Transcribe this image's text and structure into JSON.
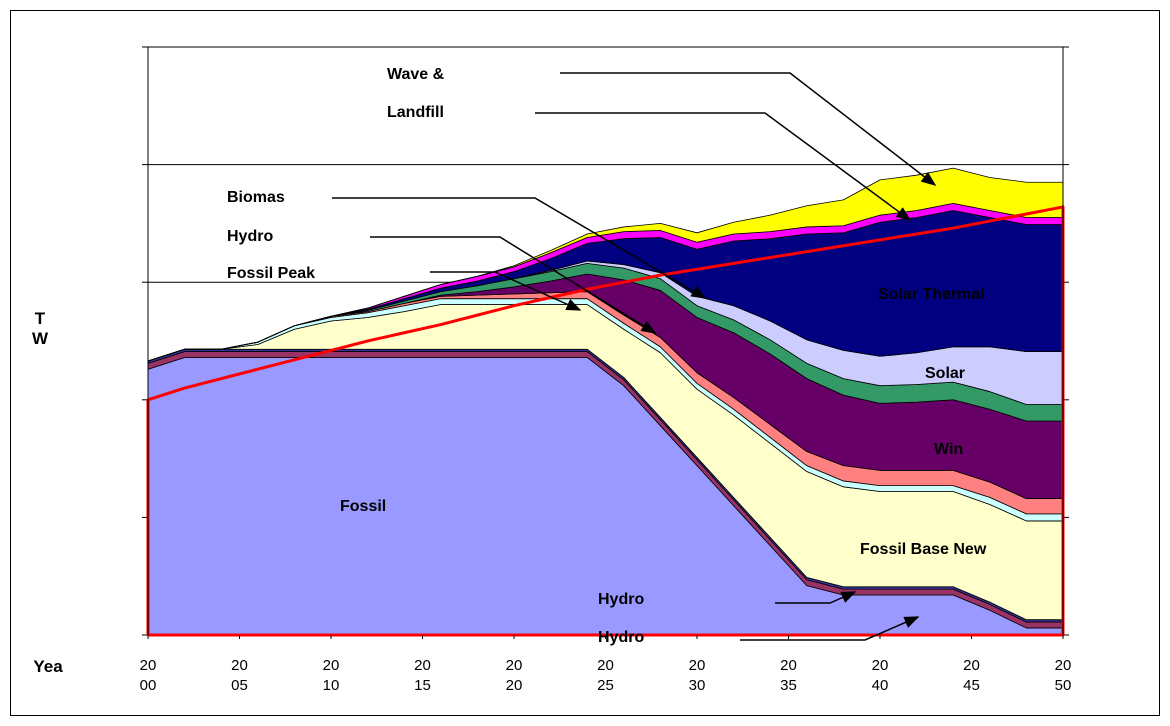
{
  "chart_data": {
    "type": "stacked-area",
    "x_label": "Yea",
    "y_label": "T\nW",
    "x": [
      2000,
      2002,
      2004,
      2006,
      2008,
      2010,
      2012,
      2014,
      2016,
      2018,
      2020,
      2022,
      2024,
      2026,
      2028,
      2030,
      2032,
      2034,
      2036,
      2038,
      2040,
      2042,
      2044,
      2046,
      2048,
      2050
    ],
    "xlim": [
      2000,
      2050
    ],
    "xticks": [
      {
        "value": 2000,
        "label": "20\n00"
      },
      {
        "value": 2005,
        "label": "20\n05"
      },
      {
        "value": 2010,
        "label": "20\n10"
      },
      {
        "value": 2015,
        "label": "20\n15"
      },
      {
        "value": 2020,
        "label": "20\n20"
      },
      {
        "value": 2025,
        "label": "20\n25"
      },
      {
        "value": 2030,
        "label": "20\n30"
      },
      {
        "value": 2035,
        "label": "20\n35"
      },
      {
        "value": 2040,
        "label": "20\n40"
      },
      {
        "value": 2045,
        "label": "20\n45"
      },
      {
        "value": 2050,
        "label": "20\n50"
      }
    ],
    "ylim": [
      0,
      5
    ],
    "yticks": [
      0,
      1,
      2,
      3,
      4,
      5
    ],
    "grid": true,
    "series": [
      {
        "name": "Fossil",
        "color": "#9999ff",
        "values": [
          2.26,
          2.36,
          2.36,
          2.36,
          2.36,
          2.36,
          2.36,
          2.36,
          2.36,
          2.36,
          2.36,
          2.36,
          2.36,
          2.12,
          1.78,
          1.44,
          1.1,
          0.76,
          0.42,
          0.34,
          0.34,
          0.34,
          0.34,
          0.21,
          0.06,
          0.06
        ]
      },
      {
        "name": "Hydro",
        "color": "#993366",
        "values": [
          0.05,
          0.05,
          0.05,
          0.05,
          0.05,
          0.05,
          0.05,
          0.05,
          0.05,
          0.05,
          0.05,
          0.05,
          0.05,
          0.05,
          0.05,
          0.05,
          0.05,
          0.05,
          0.05,
          0.05,
          0.05,
          0.05,
          0.05,
          0.05,
          0.05,
          0.05
        ]
      },
      {
        "name": "Hydro",
        "color": "#333399",
        "values": [
          0.02,
          0.02,
          0.02,
          0.02,
          0.02,
          0.02,
          0.02,
          0.02,
          0.02,
          0.02,
          0.02,
          0.02,
          0.02,
          0.02,
          0.02,
          0.02,
          0.02,
          0.02,
          0.02,
          0.02,
          0.02,
          0.02,
          0.02,
          0.02,
          0.02,
          0.02
        ]
      },
      {
        "name": "Fossil Base New",
        "color": "#ffffcc",
        "values": [
          0,
          0,
          0,
          0.04,
          0.17,
          0.24,
          0.27,
          0.32,
          0.38,
          0.38,
          0.38,
          0.38,
          0.38,
          0.41,
          0.55,
          0.58,
          0.7,
          0.8,
          0.9,
          0.85,
          0.81,
          0.81,
          0.81,
          0.83,
          0.84,
          0.84
        ]
      },
      {
        "name": "Fossil Peak",
        "color": "#ccffff",
        "values": [
          0,
          0,
          0,
          0.02,
          0.03,
          0.03,
          0.04,
          0.05,
          0.05,
          0.05,
          0.05,
          0.05,
          0.05,
          0.05,
          0.05,
          0.05,
          0.05,
          0.05,
          0.05,
          0.05,
          0.05,
          0.05,
          0.05,
          0.06,
          0.06,
          0.06
        ]
      },
      {
        "name": "Hydro",
        "color": "#ff8080",
        "values": [
          0,
          0,
          0,
          0,
          0,
          0.01,
          0.01,
          0.02,
          0.02,
          0.03,
          0.04,
          0.05,
          0.06,
          0.07,
          0.08,
          0.09,
          0.1,
          0.11,
          0.12,
          0.13,
          0.13,
          0.13,
          0.13,
          0.13,
          0.13,
          0.13
        ]
      },
      {
        "name": "Win",
        "color": "#660066",
        "values": [
          0,
          0,
          0,
          0,
          0,
          0,
          0,
          0,
          0.01,
          0.03,
          0.06,
          0.1,
          0.15,
          0.3,
          0.4,
          0.47,
          0.55,
          0.6,
          0.62,
          0.6,
          0.57,
          0.58,
          0.6,
          0.62,
          0.66,
          0.66
        ]
      },
      {
        "name": "Biomas",
        "color": "#339966",
        "values": [
          0,
          0,
          0,
          0,
          0,
          0,
          0.01,
          0.02,
          0.03,
          0.05,
          0.07,
          0.08,
          0.09,
          0.1,
          0.1,
          0.1,
          0.11,
          0.12,
          0.13,
          0.14,
          0.15,
          0.15,
          0.15,
          0.15,
          0.14,
          0.14
        ]
      },
      {
        "name": "Solar",
        "color": "#ccccff",
        "values": [
          0,
          0,
          0,
          0,
          0,
          0,
          0,
          0,
          0,
          0,
          0,
          0.01,
          0.02,
          0.03,
          0.05,
          0.08,
          0.12,
          0.16,
          0.2,
          0.24,
          0.25,
          0.27,
          0.3,
          0.38,
          0.45,
          0.45
        ]
      },
      {
        "name": "Solar Thermal",
        "color": "#000080",
        "values": [
          0,
          0,
          0,
          0,
          0,
          0,
          0.01,
          0.02,
          0.03,
          0.04,
          0.06,
          0.1,
          0.15,
          0.22,
          0.3,
          0.4,
          0.55,
          0.7,
          0.9,
          1.0,
          1.14,
          1.15,
          1.16,
          1.1,
          1.08,
          1.08
        ]
      },
      {
        "name": "Landfill",
        "color": "#ff00ff",
        "values": [
          0,
          0,
          0,
          0,
          0,
          0,
          0.01,
          0.02,
          0.03,
          0.04,
          0.04,
          0.05,
          0.05,
          0.06,
          0.06,
          0.06,
          0.06,
          0.06,
          0.06,
          0.06,
          0.06,
          0.06,
          0.06,
          0.06,
          0.06,
          0.06
        ]
      },
      {
        "name": "Wave &",
        "color": "#ffff00",
        "values": [
          0,
          0,
          0,
          0,
          0,
          0,
          0,
          0,
          0,
          0,
          0.01,
          0.02,
          0.03,
          0.04,
          0.06,
          0.08,
          0.1,
          0.14,
          0.18,
          0.22,
          0.3,
          0.3,
          0.3,
          0.28,
          0.3,
          0.3
        ]
      }
    ],
    "line": {
      "color": "#ff0000",
      "values": [
        2.0,
        2.1,
        2.18,
        2.26,
        2.34,
        2.42,
        2.5,
        2.57,
        2.64,
        2.72,
        2.8,
        2.87,
        2.94,
        3.0,
        3.06,
        3.11,
        3.16,
        3.21,
        3.26,
        3.31,
        3.36,
        3.41,
        3.46,
        3.52,
        3.58,
        3.64
      ]
    }
  }
}
